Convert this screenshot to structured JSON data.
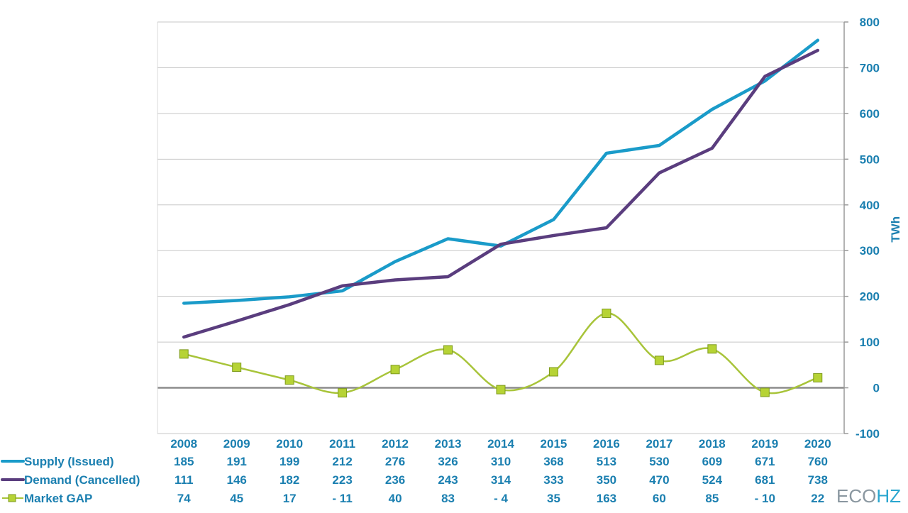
{
  "chart_data": {
    "type": "line",
    "categories": [
      "2008",
      "2009",
      "2010",
      "2011",
      "2012",
      "2013",
      "2014",
      "2015",
      "2016",
      "2017",
      "2018",
      "2019",
      "2020"
    ],
    "series": [
      {
        "name": "Supply (Issued)",
        "color": "#1a9bc9",
        "marker": "none",
        "values": [
          185,
          191,
          199,
          212,
          276,
          326,
          310,
          368,
          513,
          530,
          609,
          671,
          760
        ],
        "labels": [
          "185",
          "191",
          "199",
          "212",
          "276",
          "326",
          "310",
          "368",
          "513",
          "530",
          "609",
          "671",
          "760"
        ]
      },
      {
        "name": "Demand (Cancelled)",
        "color": "#5a3d7e",
        "marker": "none",
        "values": [
          111,
          146,
          182,
          223,
          236,
          243,
          314,
          333,
          350,
          470,
          524,
          681,
          738
        ],
        "labels": [
          "111",
          "146",
          "182",
          "223",
          "236",
          "243",
          "314",
          "333",
          "350",
          "470",
          "524",
          "681",
          "738"
        ]
      },
      {
        "name": "Market GAP",
        "color": "#a8c43a",
        "marker": "square",
        "smooth": true,
        "values": [
          74,
          45,
          17,
          -11,
          40,
          83,
          -4,
          35,
          163,
          60,
          85,
          -10,
          22
        ],
        "labels": [
          "74",
          "45",
          "17",
          "- 11",
          "40",
          "83",
          "- 4",
          "35",
          "163",
          "60",
          "85",
          "- 10",
          "22"
        ]
      }
    ],
    "ylabel": "TWh",
    "ylim": [
      -100,
      800
    ],
    "yticks": [
      "800",
      "700",
      "600",
      "500",
      "400",
      "300",
      "200",
      "100",
      "0",
      "-100"
    ],
    "ytick_values": [
      800,
      700,
      600,
      500,
      400,
      300,
      200,
      100,
      0,
      -100
    ],
    "grid": true,
    "y_axis_position": "right",
    "legend_placement": "bottom-table"
  },
  "brand": {
    "prefix": "ECO",
    "suffix": "HZ"
  }
}
